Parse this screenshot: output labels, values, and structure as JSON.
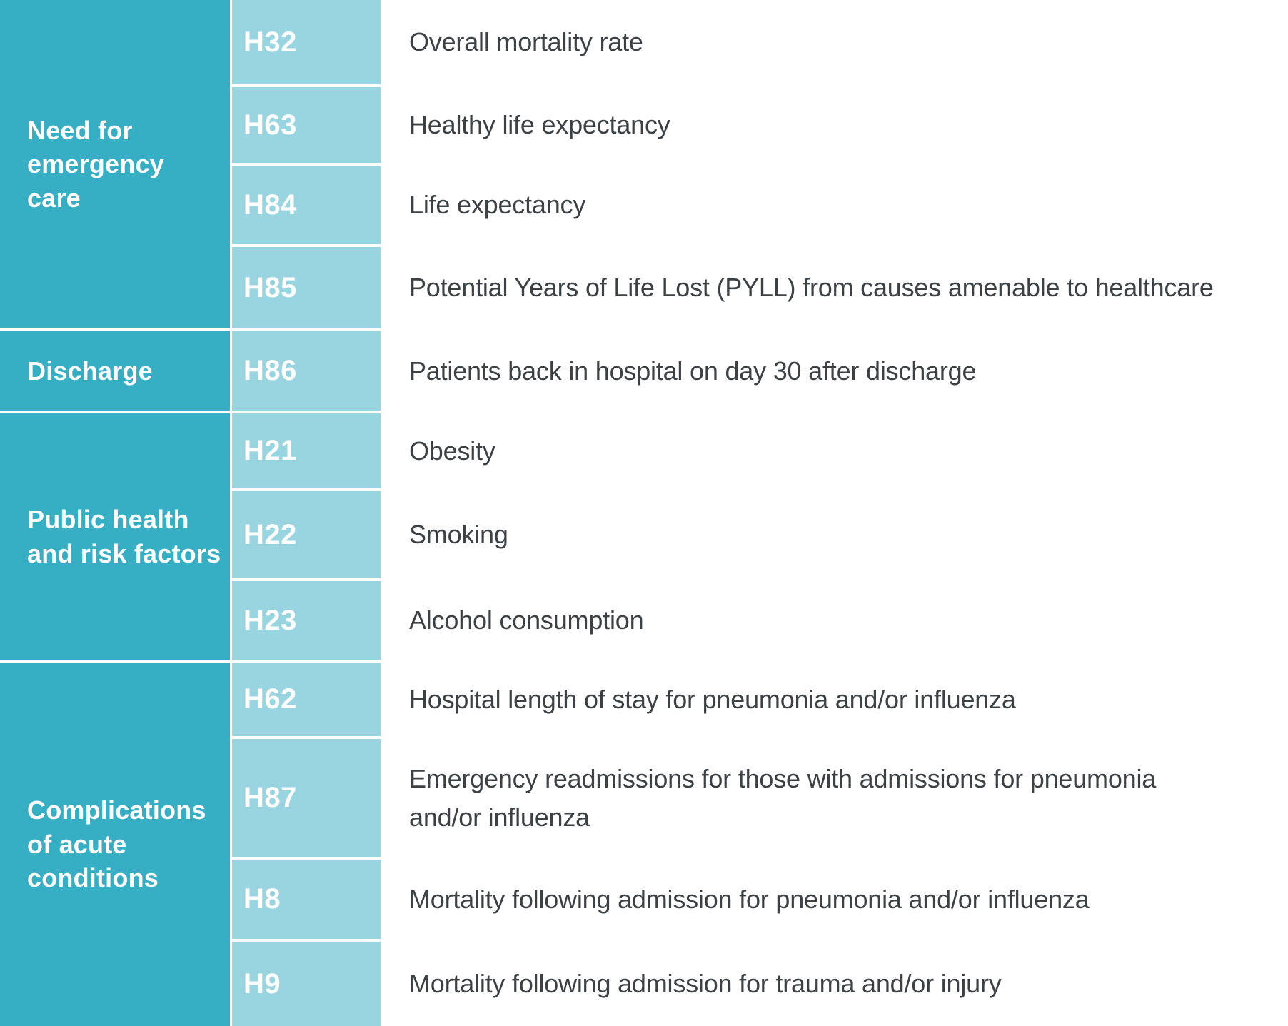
{
  "palette": {
    "category_bg": "#36aec3",
    "code_bg": "#99d5e0",
    "divider": "#ffffff",
    "category_text": "#ffffff",
    "code_text": "#ffffff",
    "description_text": "#3e4144"
  },
  "table": {
    "categories": [
      {
        "label": "Need for emergency care",
        "row_span": [
          "H32",
          "H63",
          "H84",
          "H85"
        ]
      },
      {
        "label": "Discharge",
        "row_span": [
          "H86"
        ]
      },
      {
        "label": "Public health and risk factors",
        "row_span": [
          "H21",
          "H22",
          "H23"
        ]
      },
      {
        "label": "Complications of acute conditions",
        "row_span": [
          "H62",
          "H87",
          "H8",
          "H9"
        ]
      }
    ],
    "rows": [
      {
        "code": "H32",
        "description": "Overall mortality rate"
      },
      {
        "code": "H63",
        "description": "Healthy life expectancy"
      },
      {
        "code": "H84",
        "description": "Life expectancy"
      },
      {
        "code": "H85",
        "description": "Potential Years of Life Lost (PYLL) from causes amenable to healthcare"
      },
      {
        "code": "H86",
        "description": "Patients back in hospital on day 30 after discharge"
      },
      {
        "code": "H21",
        "description": "Obesity"
      },
      {
        "code": "H22",
        "description": "Smoking"
      },
      {
        "code": "H23",
        "description": "Alcohol consumption"
      },
      {
        "code": "H62",
        "description": "Hospital length of stay for pneumonia and/or influenza"
      },
      {
        "code": "H87",
        "description": "Emergency readmissions for those with admissions for pneumonia\nand/or influenza"
      },
      {
        "code": "H8",
        "description": "Mortality following admission for pneumonia and/or influenza"
      },
      {
        "code": "H9",
        "description": "Mortality following admission for trauma and/or injury"
      }
    ]
  }
}
